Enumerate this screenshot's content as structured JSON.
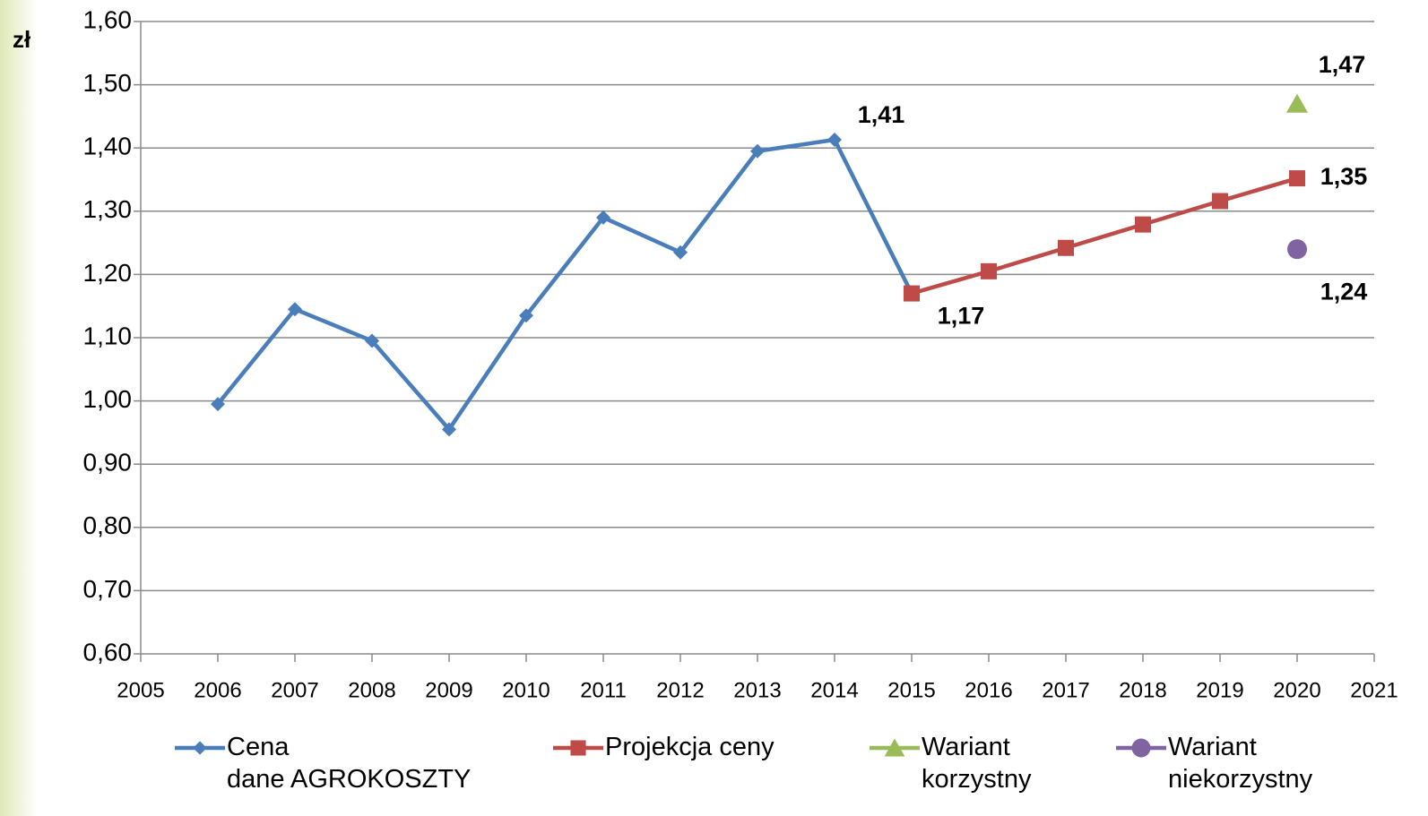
{
  "chart_data": {
    "type": "line",
    "y_label": "zł",
    "xlim": [
      2005,
      2021
    ],
    "xticks": [
      2005,
      2006,
      2007,
      2008,
      2009,
      2010,
      2011,
      2012,
      2013,
      2014,
      2015,
      2016,
      2017,
      2018,
      2019,
      2020,
      2021
    ],
    "ylim": [
      0.6,
      1.6
    ],
    "yticks": [
      {
        "value": 0.6,
        "label": "0,60"
      },
      {
        "value": 0.7,
        "label": "0,70"
      },
      {
        "value": 0.8,
        "label": "0,80"
      },
      {
        "value": 0.9,
        "label": "0,90"
      },
      {
        "value": 1.0,
        "label": "1,00"
      },
      {
        "value": 1.1,
        "label": "1,10"
      },
      {
        "value": 1.2,
        "label": "1,20"
      },
      {
        "value": 1.3,
        "label": "1,30"
      },
      {
        "value": 1.4,
        "label": "1,40"
      },
      {
        "value": 1.5,
        "label": "1,50"
      },
      {
        "value": 1.6,
        "label": "1,60"
      }
    ],
    "grid": true,
    "legend": "bottom",
    "series": [
      {
        "name": "Cena\ndane AGROKOSZTY",
        "color": "#4a7ebb",
        "marker": "diamond",
        "x": [
          2006,
          2007,
          2008,
          2009,
          2010,
          2011,
          2012,
          2013,
          2014,
          2015
        ],
        "values": [
          0.995,
          1.145,
          1.095,
          0.955,
          1.135,
          1.29,
          1.235,
          1.395,
          1.413,
          1.17
        ],
        "value_labels": [
          null,
          null,
          null,
          null,
          null,
          null,
          null,
          null,
          "1,41",
          null
        ]
      },
      {
        "name": "Projekcja ceny",
        "color": "#be4b48",
        "marker": "square",
        "x": [
          2015,
          2016,
          2017,
          2018,
          2019,
          2020
        ],
        "values": [
          1.17,
          1.205,
          1.242,
          1.279,
          1.316,
          1.352
        ],
        "value_labels": [
          "1,17",
          null,
          null,
          null,
          null,
          "1,35"
        ]
      },
      {
        "name": "Wariant\nkorzystny",
        "color": "#9bbb59",
        "marker": "triangle",
        "x": [
          2020
        ],
        "values": [
          1.47
        ],
        "value_labels": [
          "1,47"
        ]
      },
      {
        "name": "Wariant\nniekorzystny",
        "color": "#8064a2",
        "marker": "circle",
        "x": [
          2020
        ],
        "values": [
          1.24
        ],
        "value_labels": [
          "1,24"
        ]
      }
    ]
  }
}
